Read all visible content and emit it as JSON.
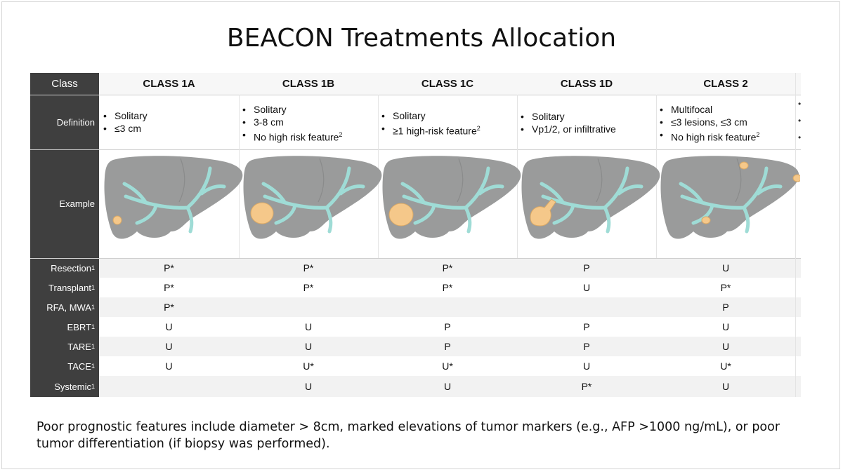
{
  "title": "BEACON Treatments Allocation",
  "header": {
    "class_label": "Class"
  },
  "row_labels": {
    "definition": "Definition",
    "example": "Example",
    "resection": "Resection",
    "transplant": "Transplant",
    "rfa_mwa": "RFA, MWA",
    "ebrt": "EBRT",
    "tare": "TARE",
    "tace": "TACE",
    "systemic": "Systemic",
    "footref": "1"
  },
  "columns": [
    {
      "name": "CLASS 1A",
      "def": [
        "Solitary",
        "≤3 cm"
      ],
      "def_sup": [
        "",
        ""
      ],
      "resection": "P*",
      "transplant": "P*",
      "rfa": "P*",
      "ebrt": "U",
      "tare": "U",
      "tace": "U",
      "systemic": ""
    },
    {
      "name": "CLASS 1B",
      "def": [
        "Solitary",
        "3-8 cm",
        "No high risk feature"
      ],
      "def_sup": [
        "",
        "",
        "2"
      ],
      "resection": "P*",
      "transplant": "P*",
      "rfa": "",
      "ebrt": "U",
      "tare": "U",
      "tace": "U*",
      "systemic": "U"
    },
    {
      "name": "CLASS 1C",
      "def": [
        "Solitary",
        "≥1 high-risk feature"
      ],
      "def_sup": [
        "",
        "2"
      ],
      "resection": "P*",
      "transplant": "P*",
      "rfa": "",
      "ebrt": "P",
      "tare": "P",
      "tace": "U*",
      "systemic": "U"
    },
    {
      "name": "CLASS 1D",
      "def": [
        "Solitary",
        "Vp1/2, or infiltrative"
      ],
      "def_sup": [
        "",
        ""
      ],
      "resection": "P",
      "transplant": "U",
      "rfa": "",
      "ebrt": "P",
      "tare": "P",
      "tace": "U",
      "systemic": "P*"
    },
    {
      "name": "CLASS 2",
      "def": [
        "Multifocal",
        "≤3 lesions, ≤3 cm",
        "No high risk feature"
      ],
      "def_sup": [
        "",
        "",
        "2"
      ],
      "resection": "U",
      "transplant": "P*",
      "rfa": "P",
      "ebrt": "U",
      "tare": "U",
      "tace": "U*",
      "systemic": "U"
    }
  ],
  "footnote": "Poor prognostic features include diameter > 8cm, marked elevations of tumor markers (e.g., AFP >1000 ng/mL), or poor tumor differentiation (if biopsy was performed).",
  "colors": {
    "header_dark": "#3f3f3f",
    "liver": "#9a9b9b",
    "vessel": "#9fdcd6",
    "tumor": "#f5c88a"
  }
}
